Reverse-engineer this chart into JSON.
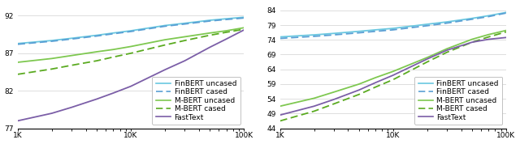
{
  "left": {
    "ylim": [
      77,
      93.5
    ],
    "yticks": [
      77,
      82,
      87,
      92
    ],
    "xlim": [
      1000,
      100000
    ],
    "series": [
      {
        "label": "FinBERT uncased",
        "color": "#6ac8e0",
        "linestyle": "solid",
        "x": [
          1000,
          2000,
          3000,
          5000,
          7000,
          10000,
          20000,
          30000,
          50000,
          70000,
          100000
        ],
        "y": [
          88.3,
          88.7,
          89.0,
          89.4,
          89.7,
          90.0,
          90.7,
          91.0,
          91.4,
          91.6,
          91.8
        ]
      },
      {
        "label": "FinBERT cased",
        "color": "#5a9fd4",
        "linestyle": "dashed",
        "x": [
          1000,
          2000,
          3000,
          5000,
          7000,
          10000,
          20000,
          30000,
          50000,
          70000,
          100000
        ],
        "y": [
          88.2,
          88.6,
          88.9,
          89.3,
          89.6,
          89.9,
          90.6,
          90.9,
          91.3,
          91.5,
          91.7
        ]
      },
      {
        "label": "M-BERT uncased",
        "color": "#7ec850",
        "linestyle": "solid",
        "x": [
          1000,
          2000,
          3000,
          5000,
          7000,
          10000,
          20000,
          30000,
          50000,
          70000,
          100000
        ],
        "y": [
          85.8,
          86.3,
          86.7,
          87.2,
          87.5,
          87.9,
          88.8,
          89.2,
          89.7,
          90.0,
          90.4
        ]
      },
      {
        "label": "M-BERT cased",
        "color": "#5aaa20",
        "linestyle": "dashed",
        "x": [
          1000,
          2000,
          3000,
          5000,
          7000,
          10000,
          20000,
          30000,
          50000,
          70000,
          100000
        ],
        "y": [
          84.2,
          84.9,
          85.4,
          86.0,
          86.5,
          87.0,
          88.1,
          88.7,
          89.4,
          89.8,
          90.2
        ]
      },
      {
        "label": "FastText",
        "color": "#7b5ea7",
        "linestyle": "solid",
        "x": [
          1000,
          2000,
          3000,
          5000,
          7000,
          10000,
          20000,
          30000,
          50000,
          70000,
          100000
        ],
        "y": [
          78.0,
          79.0,
          79.8,
          80.9,
          81.7,
          82.6,
          84.8,
          86.0,
          87.8,
          88.9,
          90.1
        ]
      }
    ]
  },
  "right": {
    "ylim": [
      44,
      86
    ],
    "yticks": [
      44,
      49,
      54,
      59,
      64,
      69,
      74,
      79,
      84
    ],
    "xlim": [
      1000,
      100000
    ],
    "series": [
      {
        "label": "FinBERT uncased",
        "color": "#6ac8e0",
        "linestyle": "solid",
        "x": [
          1000,
          2000,
          3000,
          5000,
          7000,
          10000,
          20000,
          30000,
          50000,
          70000,
          100000
        ],
        "y": [
          75.0,
          75.7,
          76.2,
          76.9,
          77.4,
          77.9,
          79.3,
          80.1,
          81.3,
          82.2,
          83.3
        ]
      },
      {
        "label": "FinBERT cased",
        "color": "#5a9fd4",
        "linestyle": "dashed",
        "x": [
          1000,
          2000,
          3000,
          5000,
          7000,
          10000,
          20000,
          30000,
          50000,
          70000,
          100000
        ],
        "y": [
          74.5,
          75.2,
          75.7,
          76.4,
          76.9,
          77.4,
          78.8,
          79.7,
          81.0,
          81.9,
          83.1
        ]
      },
      {
        "label": "M-BERT uncased",
        "color": "#7ec850",
        "linestyle": "solid",
        "x": [
          1000,
          2000,
          3000,
          5000,
          7000,
          10000,
          20000,
          30000,
          50000,
          70000,
          100000
        ],
        "y": [
          51.5,
          54.2,
          56.3,
          59.0,
          61.2,
          63.3,
          68.0,
          71.0,
          74.2,
          75.8,
          77.2
        ]
      },
      {
        "label": "M-BERT cased",
        "color": "#5aaa20",
        "linestyle": "dashed",
        "x": [
          1000,
          2000,
          3000,
          5000,
          7000,
          10000,
          20000,
          30000,
          50000,
          70000,
          100000
        ],
        "y": [
          46.5,
          49.8,
          52.3,
          55.5,
          58.0,
          60.5,
          66.5,
          69.8,
          73.2,
          75.0,
          76.7
        ]
      },
      {
        "label": "FastText",
        "color": "#7b5ea7",
        "linestyle": "solid",
        "x": [
          1000,
          2000,
          3000,
          5000,
          7000,
          10000,
          20000,
          30000,
          50000,
          70000,
          100000
        ],
        "y": [
          48.5,
          51.5,
          53.8,
          57.0,
          59.5,
          62.0,
          67.5,
          70.5,
          73.2,
          74.2,
          74.8
        ]
      }
    ]
  },
  "legend_labels": [
    "FinBERT uncased",
    "FinBERT cased",
    "M-BERT uncased",
    "M-BERT cased",
    "FastText"
  ],
  "legend_colors": [
    "#6ac8e0",
    "#5a9fd4",
    "#7ec850",
    "#5aaa20",
    "#7b5ea7"
  ],
  "legend_linestyles": [
    "solid",
    "dashed",
    "solid",
    "dashed",
    "solid"
  ],
  "background_color": "#ffffff",
  "grid_color": "#d0d0d0",
  "font_size": 6.5
}
